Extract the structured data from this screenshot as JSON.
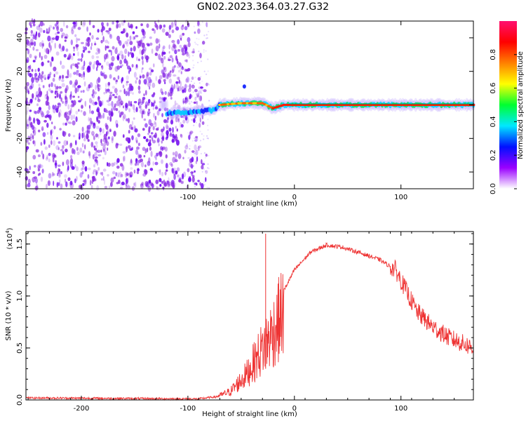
{
  "title": "GN02.2023.364.03.27.G32",
  "chart_data": [
    {
      "type": "heatmap",
      "xlabel": "Height of straight line (km)",
      "ylabel": "Frequency (Hz)",
      "xlim": [
        -252,
        168
      ],
      "ylim": [
        -50,
        50
      ],
      "xticks": [
        -200,
        -100,
        0,
        100
      ],
      "yticks": [
        -40,
        -20,
        0,
        20,
        40
      ],
      "grid": false,
      "colorbar": {
        "label": "Normalized spectral amplitude",
        "range": [
          0,
          1
        ],
        "ticks": [
          "0.0",
          "0.2",
          "0.4",
          "0.6",
          "0.8"
        ],
        "colors": [
          "#ffffff",
          "#9a00ff",
          "#0010ff",
          "#00e8ff",
          "#00ff30",
          "#ffff00",
          "#ff8000",
          "#ff0000",
          "#ff1070"
        ]
      },
      "ridge": [
        {
          "x": -120,
          "y": -5
        },
        {
          "x": -90,
          "y": -4
        },
        {
          "x": -75,
          "y": -3
        },
        {
          "x": -70,
          "y": 0
        },
        {
          "x": -50,
          "y": 1
        },
        {
          "x": -30,
          "y": 1
        },
        {
          "x": -20,
          "y": -2
        },
        {
          "x": -10,
          "y": 0
        },
        {
          "x": 0,
          "y": 0
        },
        {
          "x": 168,
          "y": 0
        }
      ]
    },
    {
      "type": "line",
      "xlabel": "Height of straight line (km)",
      "ylabel": "SNR (10 * v/v)",
      "yscale_label": "(x10",
      "yscale_exp": "4",
      "xlim": [
        -252,
        168
      ],
      "ylim": [
        0,
        1.62
      ],
      "xticks": [
        -200,
        -100,
        0,
        100
      ],
      "yticks": [
        0.0,
        0.5,
        1.0,
        1.5
      ],
      "ytick_labels": [
        "0.0",
        "0.5",
        "1.0",
        "1.5"
      ],
      "grid": false,
      "series": [
        {
          "color": "#ee3333",
          "envelope": [
            {
              "x": -252,
              "y": 0.02
            },
            {
              "x": -90,
              "y": 0.01
            },
            {
              "x": -75,
              "y": 0.03
            },
            {
              "x": -60,
              "y": 0.1
            },
            {
              "x": -45,
              "y": 0.3
            },
            {
              "x": -30,
              "y": 0.6
            },
            {
              "x": -20,
              "y": 0.8
            },
            {
              "x": -10,
              "y": 1.05
            },
            {
              "x": 0,
              "y": 1.25
            },
            {
              "x": 15,
              "y": 1.42
            },
            {
              "x": 30,
              "y": 1.49
            },
            {
              "x": 45,
              "y": 1.47
            },
            {
              "x": 60,
              "y": 1.42
            },
            {
              "x": 80,
              "y": 1.35
            },
            {
              "x": 95,
              "y": 1.25
            },
            {
              "x": 105,
              "y": 1.05
            },
            {
              "x": 115,
              "y": 0.85
            },
            {
              "x": 130,
              "y": 0.7
            },
            {
              "x": 145,
              "y": 0.6
            },
            {
              "x": 168,
              "y": 0.5
            }
          ],
          "spike": {
            "x": -27,
            "y": 1.6
          }
        }
      ]
    }
  ]
}
